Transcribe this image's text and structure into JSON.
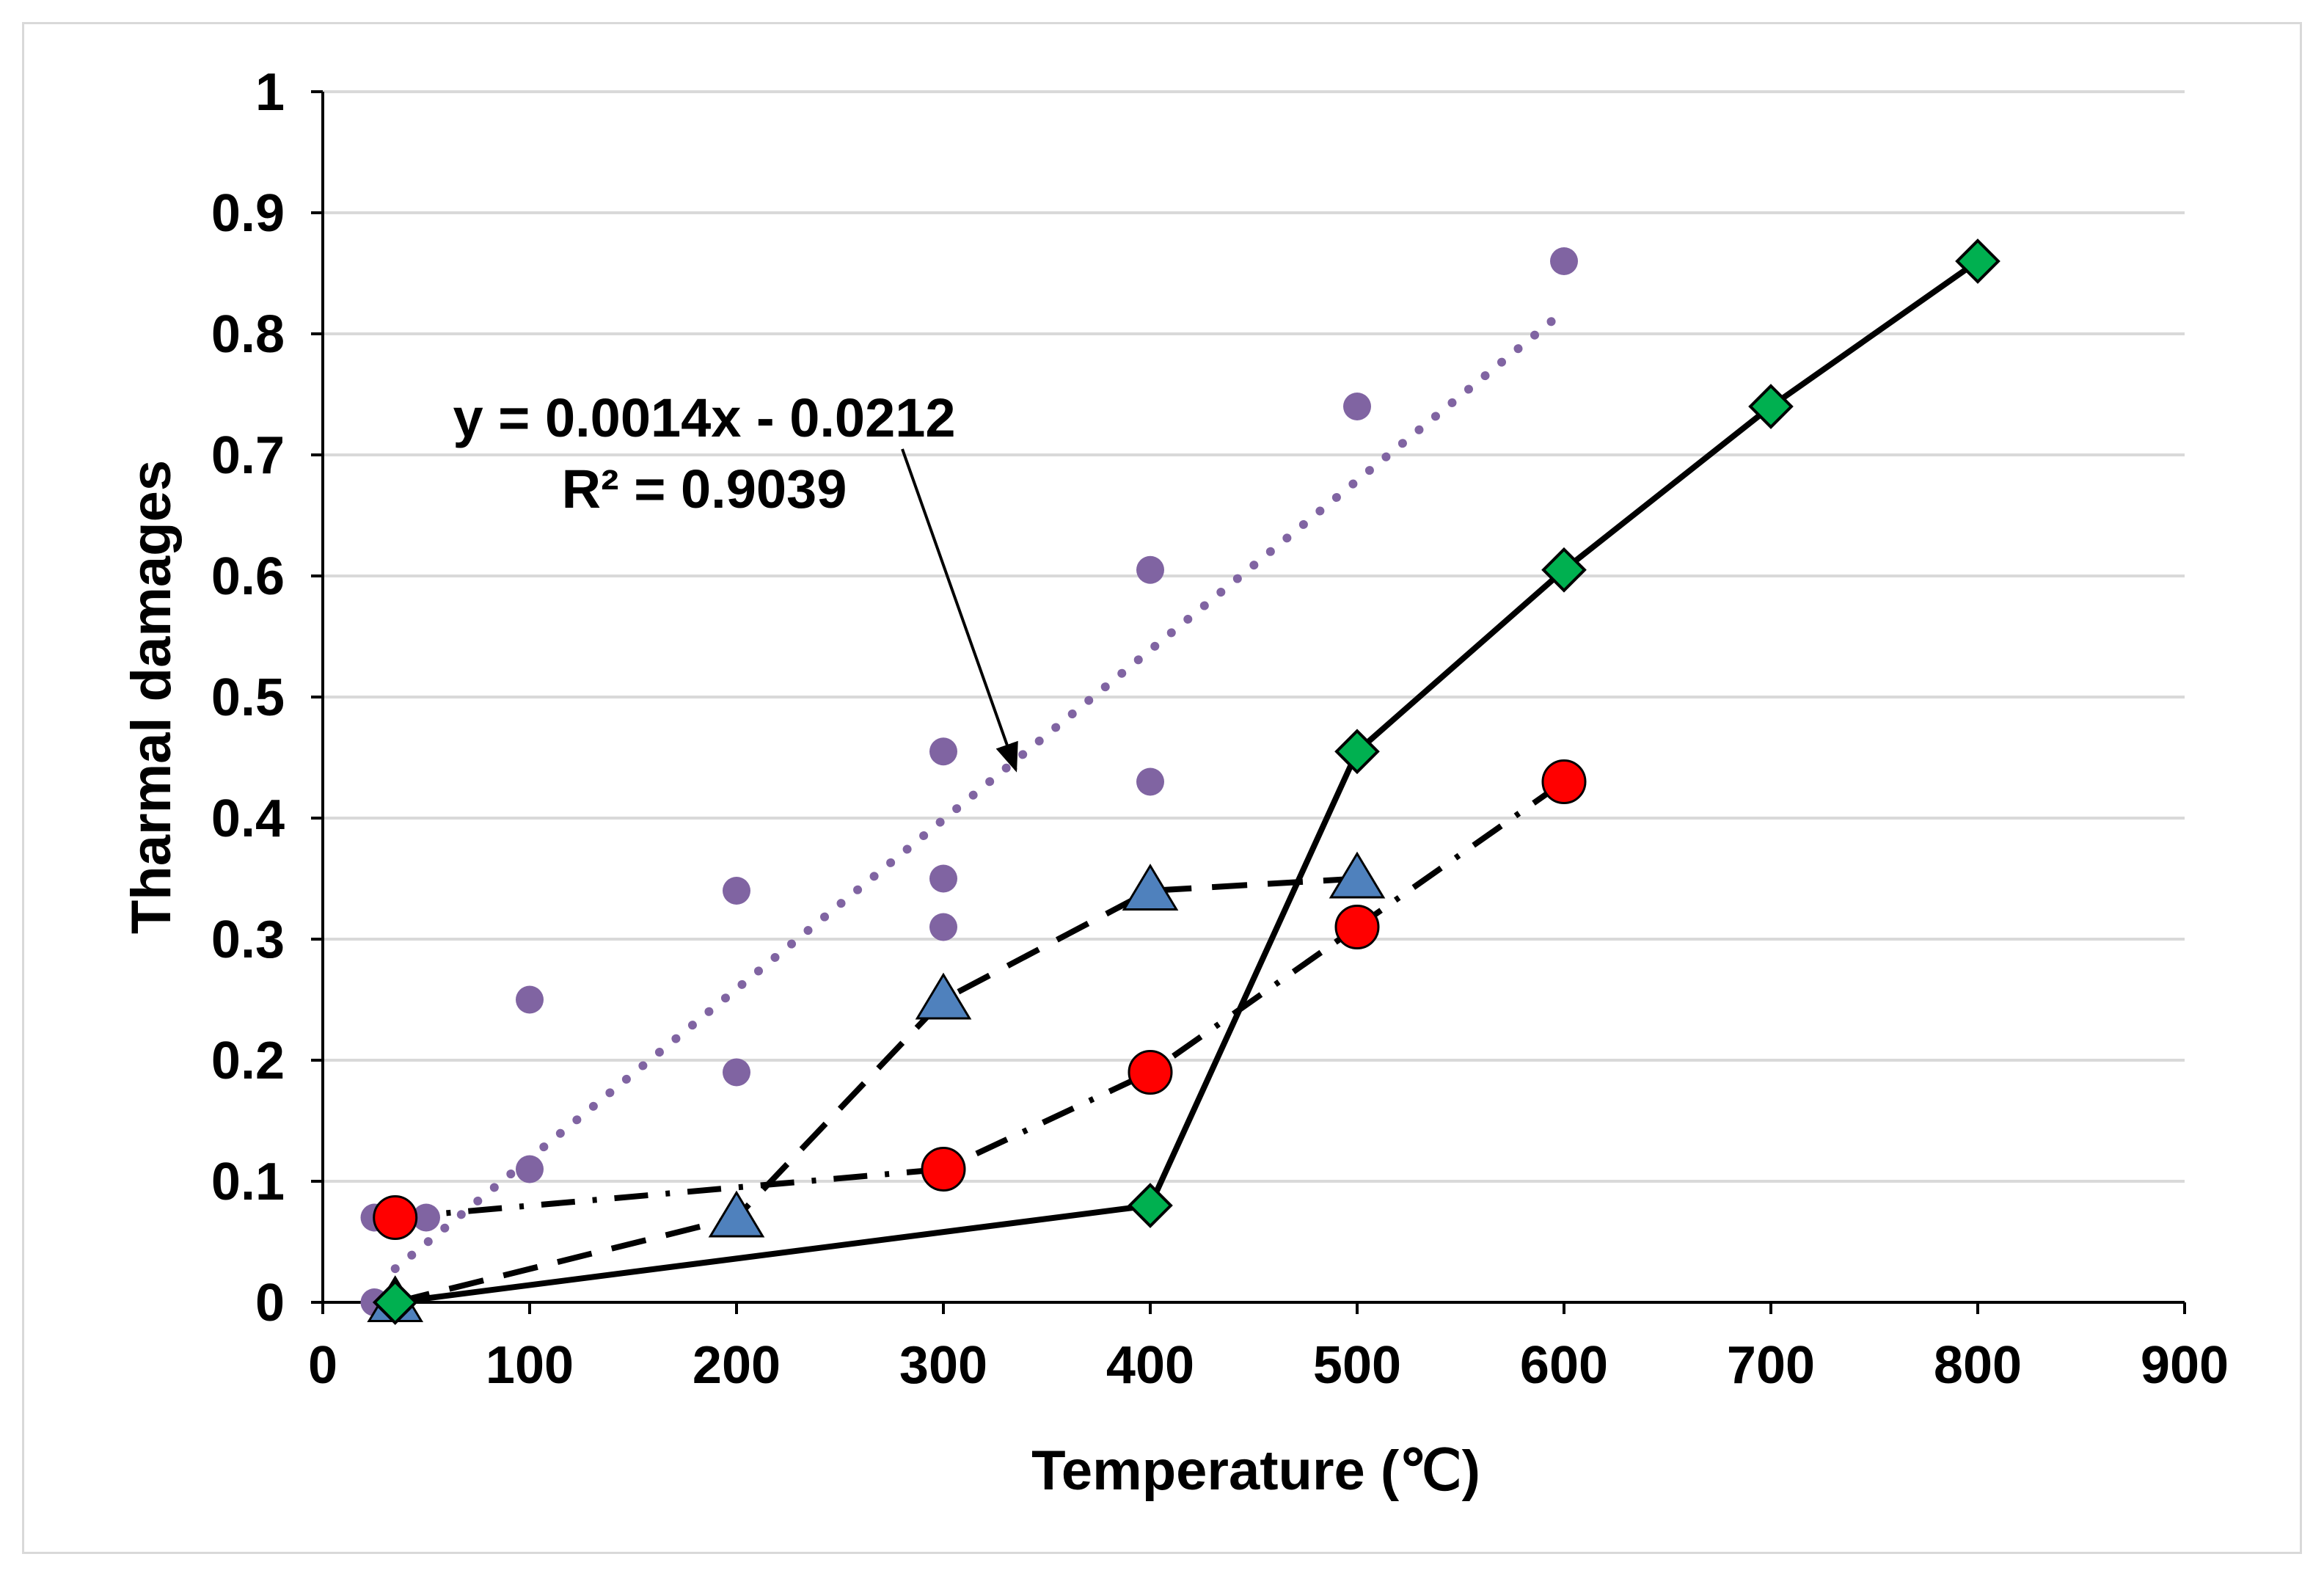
{
  "chart_data": {
    "type": "scatter",
    "title": "",
    "xlabel": "Temperature (℃)",
    "ylabel": "Tharmal damages",
    "xlim": [
      0,
      900
    ],
    "ylim": [
      0,
      1
    ],
    "xticks": [
      "0",
      "100",
      "200",
      "300",
      "400",
      "500",
      "600",
      "700",
      "800",
      "900"
    ],
    "yticks": [
      "0",
      "0.1",
      "0.2",
      "0.3",
      "0.4",
      "0.5",
      "0.6",
      "0.7",
      "0.8",
      "0.9",
      "1"
    ],
    "grid": "horizontal",
    "series": [
      {
        "name": "scatter points (dotted linear trend)",
        "marker": "small-circle",
        "color": "#8064a2",
        "line": "none",
        "x": [
          25,
          25,
          50,
          100,
          100,
          200,
          200,
          300,
          300,
          300,
          300,
          400,
          400,
          500,
          600
        ],
        "y": [
          0,
          0.07,
          0.07,
          0.25,
          0.11,
          0.34,
          0.19,
          0.455,
          0.35,
          0.31,
          0.11,
          0.605,
          0.43,
          0.74,
          0.86
        ]
      },
      {
        "name": "triangle series (dashed)",
        "marker": "triangle",
        "color": "#4f81bd",
        "line": "dashed",
        "x": [
          35,
          200,
          300,
          400,
          500
        ],
        "y": [
          0,
          0.07,
          0.25,
          0.34,
          0.35
        ]
      },
      {
        "name": "circle series (dash-dot)",
        "marker": "circle",
        "color": "#ff0000",
        "line": "dash-dot",
        "x": [
          35,
          300,
          400,
          500,
          600
        ],
        "y": [
          0.07,
          0.11,
          0.19,
          0.31,
          0.43
        ]
      },
      {
        "name": "diamond series (solid)",
        "marker": "diamond",
        "color": "#00b050",
        "line": "solid",
        "x": [
          35,
          400,
          500,
          600,
          700,
          800
        ],
        "y": [
          0,
          0.08,
          0.455,
          0.605,
          0.74,
          0.86
        ]
      }
    ],
    "trendline": {
      "type": "linear",
      "slope": 0.0014,
      "intercept": -0.0212,
      "x_range": [
        35,
        600
      ],
      "color": "#8064a2",
      "style": "dotted"
    },
    "annotations": {
      "equation": "y = 0.0014x - 0.0212",
      "r_squared": "R² = 0.9039",
      "arrow_target": [
        335,
        0.44
      ]
    }
  }
}
